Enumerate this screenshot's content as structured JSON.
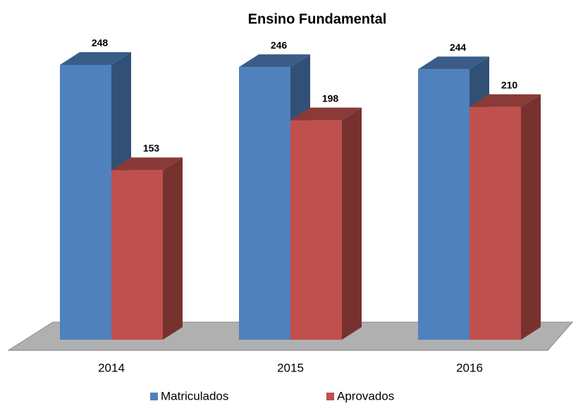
{
  "chart_data": {
    "type": "bar3d",
    "title": "Ensino Fundamental",
    "categories": [
      "2014",
      "2015",
      "2016"
    ],
    "series": [
      {
        "name": "Matriculados",
        "color": "#4f81bd",
        "values": [
          248,
          246,
          244
        ]
      },
      {
        "name": "Aprovados",
        "color": "#c0504d",
        "values": [
          153,
          198,
          210
        ]
      }
    ],
    "legend": "bottom"
  }
}
